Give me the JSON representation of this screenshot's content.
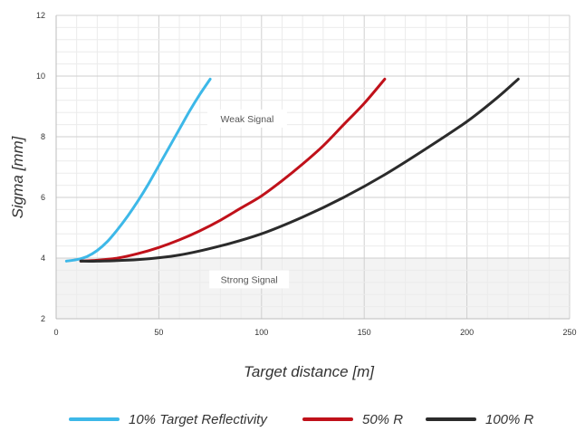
{
  "chart_data": {
    "type": "line",
    "title": "",
    "xlabel": "Target distance [m]",
    "ylabel": "Sigma [mm]",
    "xlim": [
      0,
      250
    ],
    "ylim": [
      2,
      12
    ],
    "xticks": [
      0,
      50,
      100,
      150,
      200,
      250
    ],
    "yticks": [
      2,
      4,
      6,
      8,
      10,
      12
    ],
    "grid": true,
    "legend_position": "bottom",
    "background": {
      "weak_region_color": "#ffffff",
      "strong_region_color": "#f3f3f3",
      "boundary_y": 4
    },
    "annotations": [
      {
        "text": "Weak Signal",
        "x": 93,
        "y": 8.6
      },
      {
        "text": "Strong Signal",
        "x": 94,
        "y": 3.3
      }
    ],
    "series": [
      {
        "name": "10% Target Reflectivity",
        "color": "#3db8e8",
        "x": [
          5,
          10,
          15,
          20,
          25,
          30,
          35,
          40,
          45,
          50,
          55,
          60,
          65,
          70,
          75
        ],
        "y": [
          3.9,
          3.95,
          4.05,
          4.25,
          4.55,
          4.95,
          5.4,
          5.9,
          6.45,
          7.05,
          7.65,
          8.25,
          8.85,
          9.4,
          9.9
        ]
      },
      {
        "name": "50% R",
        "color": "#c0111a",
        "x": [
          12,
          20,
          30,
          40,
          50,
          60,
          70,
          80,
          90,
          100,
          110,
          120,
          130,
          140,
          150,
          160
        ],
        "y": [
          3.9,
          3.93,
          4.0,
          4.15,
          4.35,
          4.6,
          4.9,
          5.25,
          5.65,
          6.05,
          6.55,
          7.1,
          7.7,
          8.4,
          9.1,
          9.9
        ]
      },
      {
        "name": "100% R",
        "color": "#2b2b2b",
        "x": [
          12,
          20,
          40,
          60,
          80,
          100,
          120,
          140,
          160,
          180,
          200,
          215,
          225
        ],
        "y": [
          3.9,
          3.9,
          3.95,
          4.1,
          4.4,
          4.8,
          5.35,
          6.0,
          6.75,
          7.6,
          8.5,
          9.3,
          9.9
        ]
      }
    ]
  }
}
